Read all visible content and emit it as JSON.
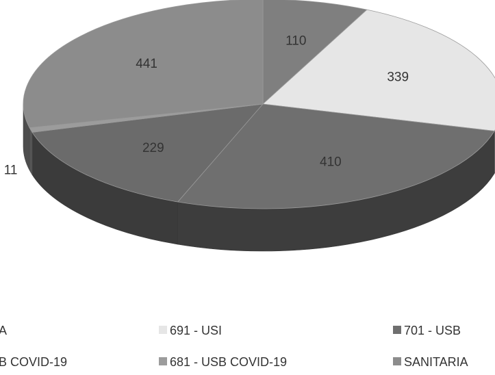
{
  "chart_data": {
    "type": "pie",
    "title": "",
    "slices": [
      {
        "label": "110",
        "value": 110,
        "color": "#7f7f7f"
      },
      {
        "label": "339",
        "value": 339,
        "color": "#e6e6e6"
      },
      {
        "label": "410",
        "value": 410,
        "color": "#6f6f6f"
      },
      {
        "label": "229",
        "value": 229,
        "color": "#6b6b6b"
      },
      {
        "label": "11",
        "value": 11,
        "color": "#9c9c9c"
      },
      {
        "label": "441",
        "value": 441,
        "color": "#8c8c8c"
      }
    ],
    "legend": [
      {
        "label": "A",
        "color": "#7f7f7f"
      },
      {
        "label": "691 - USI",
        "color": "#e6e6e6"
      },
      {
        "label": "701 - USB",
        "color": "#6f6f6f"
      },
      {
        "label": "B COVID-19",
        "color": "#6b6b6b"
      },
      {
        "label": "681 - USB COVID-19",
        "color": "#9c9c9c"
      },
      {
        "label": "SANITARIA",
        "color": "#8c8c8c"
      }
    ],
    "legend_position": "bottom",
    "style": "3d-pie"
  }
}
